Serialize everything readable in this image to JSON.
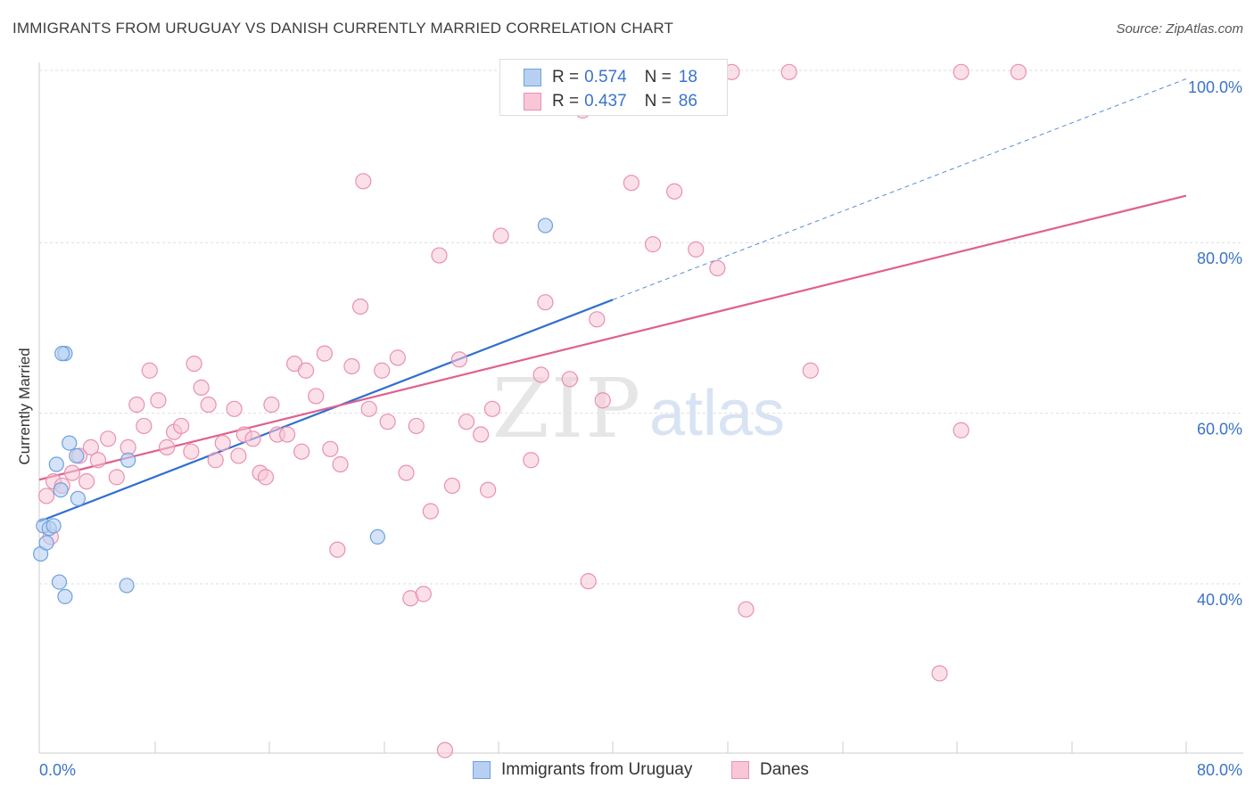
{
  "title": "IMMIGRANTS FROM URUGUAY VS DANISH CURRENTLY MARRIED CORRELATION CHART",
  "source": "Source: ZipAtlas.com",
  "watermark": {
    "zip": "ZIP",
    "atlas": "atlas"
  },
  "colors": {
    "uruguay": "#6ea0e0",
    "uruguay_fill": "#b7d0f2",
    "uruguay_line": "#2f6fcf",
    "danes": "#e990b0",
    "danes_fill": "#f8c6d7",
    "danes_line": "#e0608e",
    "axis_label": "#3a74c8",
    "grid": "#dddddd"
  },
  "legend": {
    "rows": [
      {
        "r_label": "R =",
        "r_value": "0.574",
        "n_label": "N =",
        "n_value": "18"
      },
      {
        "r_label": "R =",
        "r_value": "0.437",
        "n_label": "N =",
        "n_value": "86"
      }
    ]
  },
  "bottom_legend": [
    "Immigrants from Uruguay",
    "Danes"
  ],
  "chart_data": {
    "type": "scatter",
    "title": "IMMIGRANTS FROM URUGUAY VS DANISH CURRENTLY MARRIED CORRELATION CHART",
    "xlabel": "",
    "ylabel": "Currently Married",
    "xlim": [
      0,
      80
    ],
    "ylim": [
      20,
      102
    ],
    "x_tick_labels": [
      "0.0%",
      "80.0%"
    ],
    "y_ticks": [
      40,
      60,
      80,
      100
    ],
    "y_tick_labels": [
      "40.0%",
      "60.0%",
      "80.0%",
      "100.0%"
    ],
    "grid": true,
    "series": [
      {
        "name": "Immigrants from Uruguay",
        "R": 0.574,
        "N": 18,
        "points": [
          [
            0.1,
            43.5
          ],
          [
            0.3,
            46.8
          ],
          [
            0.5,
            44.8
          ],
          [
            0.7,
            46.5
          ],
          [
            1.0,
            46.8
          ],
          [
            1.2,
            54.0
          ],
          [
            1.4,
            40.2
          ],
          [
            1.5,
            51.0
          ],
          [
            1.8,
            38.5
          ],
          [
            2.1,
            56.5
          ],
          [
            2.6,
            55.0
          ],
          [
            2.7,
            50.0
          ],
          [
            6.1,
            39.8
          ],
          [
            6.2,
            54.5
          ],
          [
            23.6,
            45.5
          ],
          [
            35.3,
            82.0
          ],
          [
            1.8,
            67.0
          ],
          [
            1.6,
            67.0
          ]
        ],
        "trend": {
          "x0": 0,
          "y0": 47.3,
          "x1": 40,
          "y1": 73.3,
          "dashed_to_x": 80,
          "dashed_to_y": 99.2
        }
      },
      {
        "name": "Danes",
        "R": 0.437,
        "N": 86,
        "points": [
          [
            0.5,
            50.3
          ],
          [
            0.8,
            45.5
          ],
          [
            1.0,
            52.0
          ],
          [
            1.6,
            51.5
          ],
          [
            2.3,
            53.0
          ],
          [
            2.8,
            55.0
          ],
          [
            3.3,
            52.0
          ],
          [
            3.6,
            56.0
          ],
          [
            4.1,
            54.5
          ],
          [
            4.8,
            57.0
          ],
          [
            5.4,
            52.5
          ],
          [
            6.2,
            56.0
          ],
          [
            6.8,
            61.0
          ],
          [
            7.3,
            58.5
          ],
          [
            7.7,
            65.0
          ],
          [
            8.3,
            61.5
          ],
          [
            8.9,
            56.0
          ],
          [
            9.4,
            57.8
          ],
          [
            9.9,
            58.5
          ],
          [
            10.6,
            55.5
          ],
          [
            10.8,
            65.8
          ],
          [
            11.3,
            63.0
          ],
          [
            11.8,
            61.0
          ],
          [
            12.3,
            54.5
          ],
          [
            12.8,
            56.5
          ],
          [
            13.6,
            60.5
          ],
          [
            13.9,
            55.0
          ],
          [
            14.3,
            57.5
          ],
          [
            14.9,
            57.0
          ],
          [
            15.4,
            53.0
          ],
          [
            15.8,
            52.5
          ],
          [
            16.2,
            61.0
          ],
          [
            16.6,
            57.5
          ],
          [
            17.3,
            57.5
          ],
          [
            17.8,
            65.8
          ],
          [
            18.3,
            55.5
          ],
          [
            18.6,
            65.0
          ],
          [
            19.3,
            62.0
          ],
          [
            19.9,
            67.0
          ],
          [
            20.3,
            55.8
          ],
          [
            21.0,
            54.0
          ],
          [
            21.8,
            65.5
          ],
          [
            22.4,
            72.5
          ],
          [
            22.6,
            87.2
          ],
          [
            23.0,
            60.5
          ],
          [
            23.9,
            65.0
          ],
          [
            24.3,
            59.0
          ],
          [
            25.0,
            66.5
          ],
          [
            25.6,
            53.0
          ],
          [
            25.9,
            38.3
          ],
          [
            26.3,
            58.5
          ],
          [
            26.8,
            38.8
          ],
          [
            27.3,
            48.5
          ],
          [
            27.9,
            78.5
          ],
          [
            28.3,
            20.5
          ],
          [
            28.8,
            51.5
          ],
          [
            29.3,
            66.3
          ],
          [
            29.8,
            59.0
          ],
          [
            30.8,
            57.5
          ],
          [
            31.3,
            51.0
          ],
          [
            31.6,
            60.5
          ],
          [
            32.2,
            80.8
          ],
          [
            34.3,
            54.5
          ],
          [
            35.3,
            73.0
          ],
          [
            36.8,
            98.0
          ],
          [
            37.9,
            95.5
          ],
          [
            38.9,
            71.0
          ],
          [
            39.3,
            61.5
          ],
          [
            41.3,
            87.0
          ],
          [
            42.8,
            79.8
          ],
          [
            44.3,
            86.0
          ],
          [
            44.3,
            100.0
          ],
          [
            45.8,
            79.2
          ],
          [
            47.3,
            77.0
          ],
          [
            48.3,
            100.0
          ],
          [
            49.3,
            37.0
          ],
          [
            52.3,
            100.0
          ],
          [
            53.8,
            65.0
          ],
          [
            62.8,
            29.5
          ],
          [
            64.3,
            100.0
          ],
          [
            64.3,
            58.0
          ],
          [
            68.3,
            100.0
          ],
          [
            35.0,
            64.5
          ],
          [
            20.8,
            44.0
          ],
          [
            38.3,
            40.3
          ],
          [
            37.0,
            64.0
          ]
        ],
        "trend": {
          "x0": 0,
          "y0": 52.2,
          "x1": 80,
          "y1": 85.5
        }
      }
    ]
  }
}
